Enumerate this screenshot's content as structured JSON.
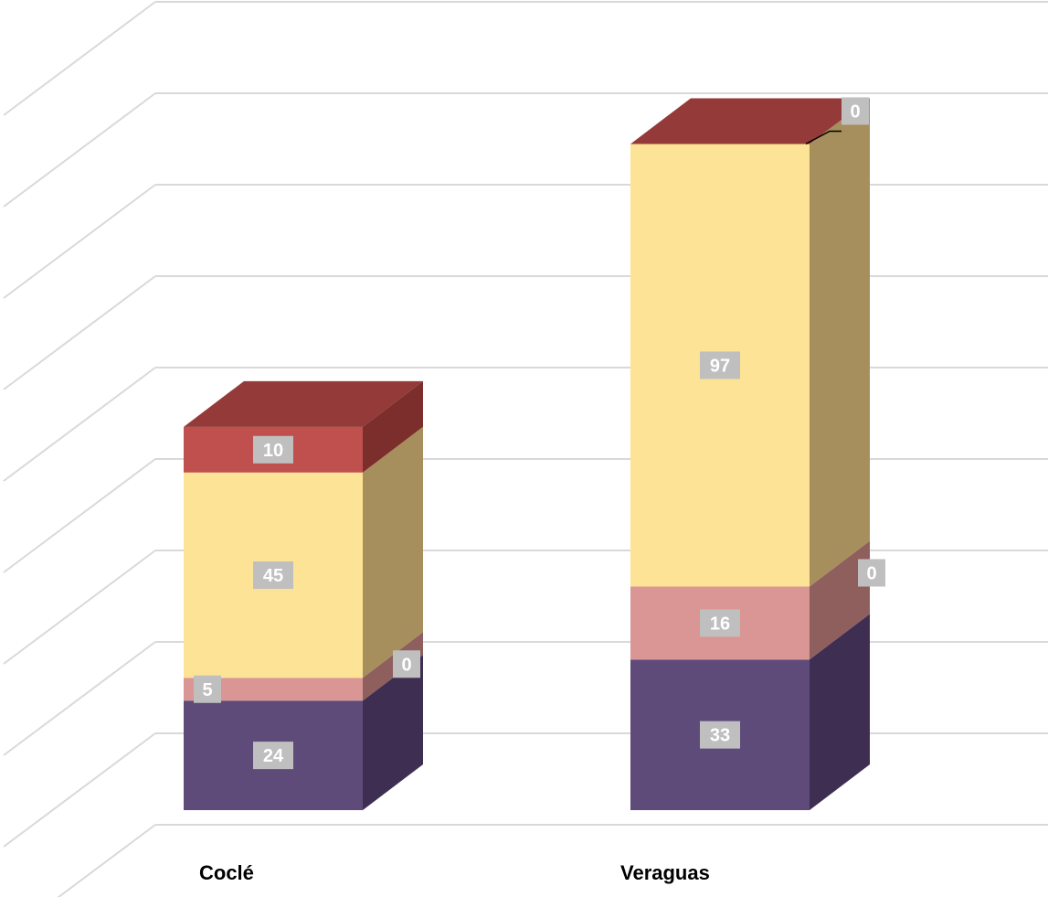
{
  "chart_data": {
    "type": "bar",
    "stacked": true,
    "three_d": true,
    "categories": [
      "Coclé",
      "Veraguas"
    ],
    "series": [
      {
        "values": [
          24,
          33
        ],
        "color": "#5f4b7a",
        "side_color": "#3e2f52"
      },
      {
        "values": [
          5,
          16
        ],
        "color": "#d99694",
        "side_color": "#8f5f5e"
      },
      {
        "values": [
          0,
          0
        ],
        "color": "#b98a8a",
        "side_color": "#8f5f5e"
      },
      {
        "values": [
          45,
          97
        ],
        "color": "#fde395",
        "side_color": "#a68f5c"
      },
      {
        "values": [
          10,
          0
        ],
        "color": "#c0504d",
        "side_color": "#7b2e2c"
      }
    ],
    "top_color": "#943a38",
    "ylim": [
      0,
      165
    ],
    "grid": true,
    "axis_labels_visible": false,
    "data_labels": {
      "Coclé": [
        "24",
        "5",
        "0",
        "45",
        "10"
      ],
      "Veraguas": [
        "33",
        "16",
        "0",
        "97",
        "0"
      ]
    }
  }
}
